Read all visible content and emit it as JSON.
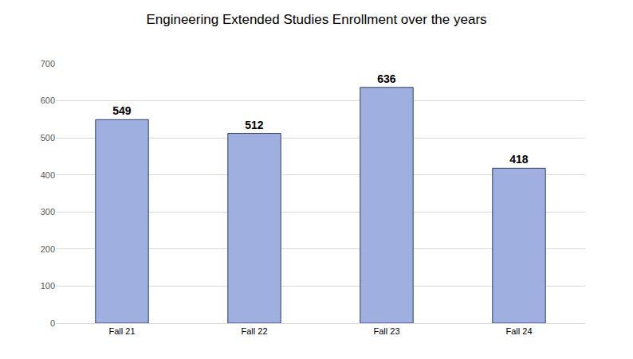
{
  "chart_data": {
    "type": "bar",
    "title": "Engineering Extended Studies Enrollment over the years",
    "categories": [
      "Fall 21",
      "Fall 22",
      "Fall 23",
      "Fall 24"
    ],
    "values": [
      549,
      512,
      636,
      418
    ],
    "color": "#9fb0e0",
    "ylim": [
      0,
      700
    ],
    "yticks": [
      0,
      100,
      200,
      300,
      400,
      500,
      600,
      700
    ],
    "grid": true,
    "data_labels": true
  }
}
